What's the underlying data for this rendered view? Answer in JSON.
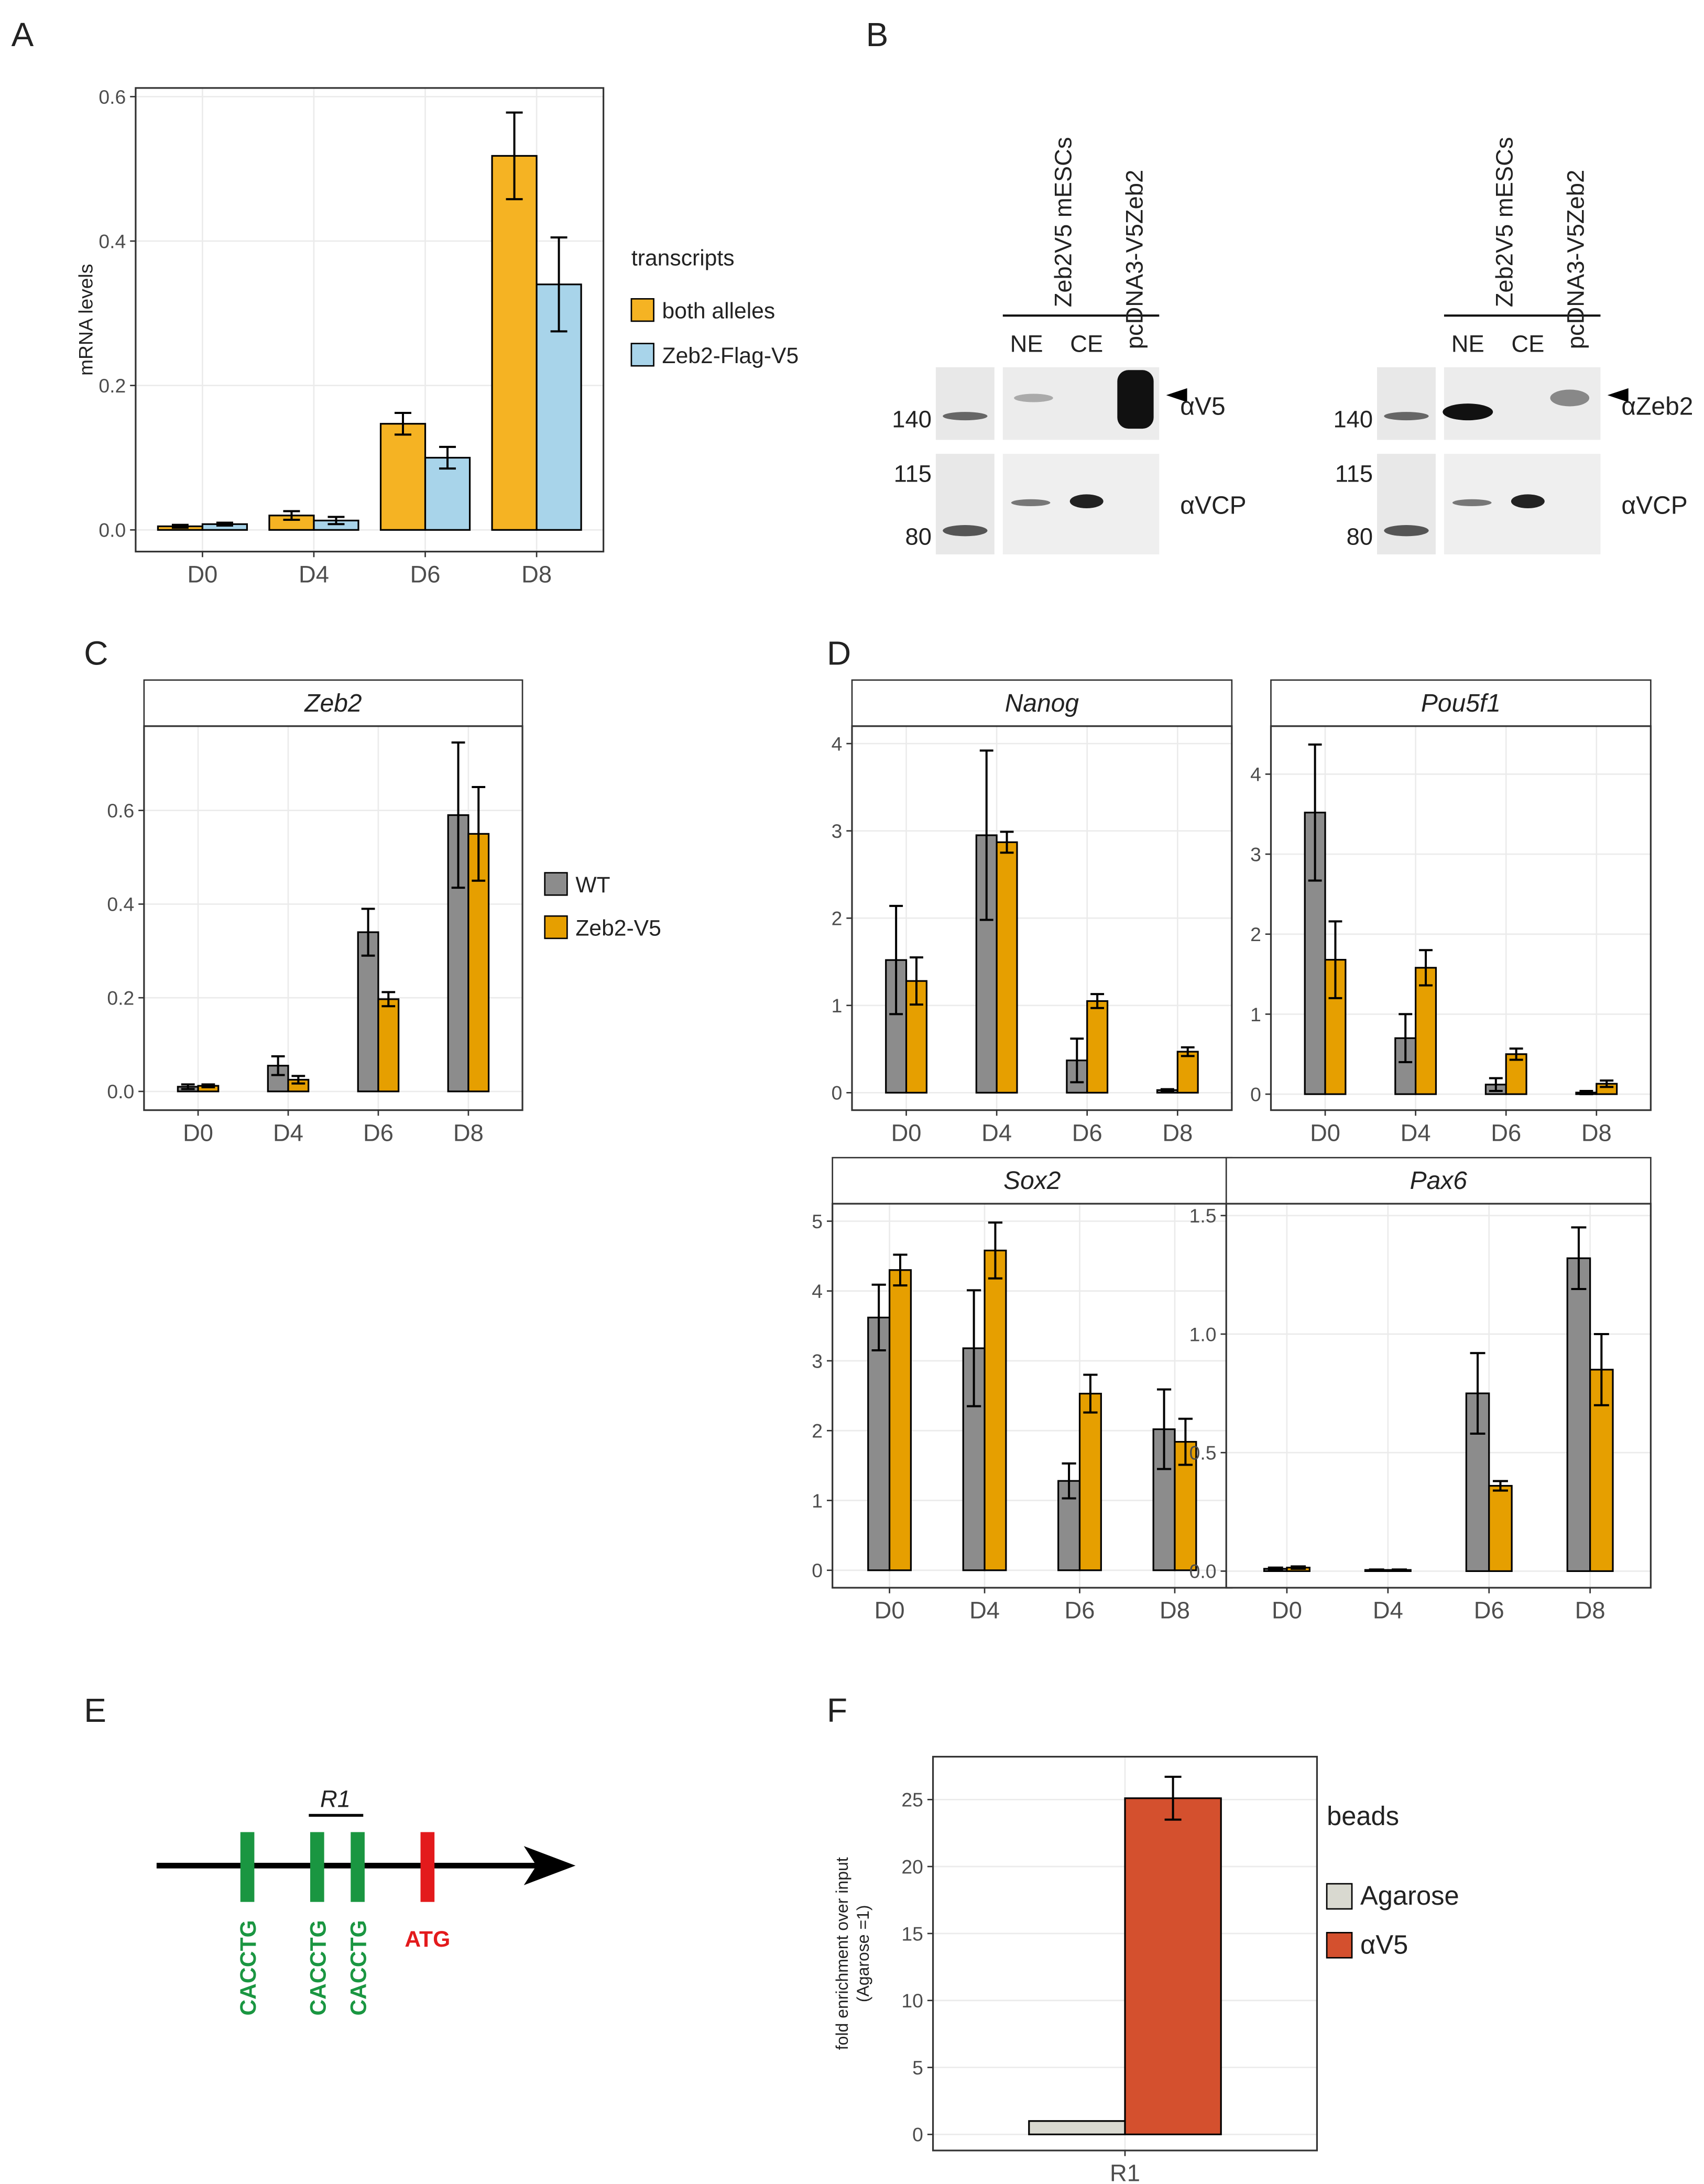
{
  "panels": [
    "A",
    "B",
    "C",
    "D",
    "E",
    "F"
  ],
  "chart_data": [
    {
      "type": "bar",
      "categories": [
        "D0",
        "D4",
        "D6",
        "D8"
      ],
      "ylabel": "mRNA levels",
      "legend_title": "transcripts",
      "series": [
        {
          "name": "both alleles",
          "color": "#f5b323",
          "values": [
            0.005,
            0.02,
            0.147,
            0.518
          ],
          "errors": [
            0.002,
            0.006,
            0.015,
            0.06
          ]
        },
        {
          "name": "Zeb2-Flag-V5",
          "color": "#a8d4ea",
          "values": [
            0.008,
            0.013,
            0.1,
            0.34
          ],
          "errors": [
            0.002,
            0.005,
            0.015,
            0.065
          ]
        }
      ],
      "ylim": [
        -0.03,
        0.612
      ],
      "yticks": [
        {
          "value": 0,
          "label": "0.0"
        },
        {
          "value": 0.2,
          "label": "0.2"
        },
        {
          "value": 0.4,
          "label": "0.4"
        },
        {
          "value": 0.6,
          "label": "0.6"
        }
      ],
      "grid": true
    },
    {
      "type": "bar",
      "title": "Zeb2",
      "categories": [
        "D0",
        "D4",
        "D6",
        "D8"
      ],
      "series": [
        {
          "name": "WT",
          "color": "#8c8c8c",
          "values": [
            0.01,
            0.055,
            0.34,
            0.59
          ],
          "errors": [
            0.005,
            0.02,
            0.05,
            0.155
          ]
        },
        {
          "name": "Zeb2-V5",
          "color": "#e69f00",
          "values": [
            0.012,
            0.025,
            0.197,
            0.55
          ],
          "errors": [
            0.003,
            0.008,
            0.015,
            0.1
          ]
        }
      ],
      "ylim": [
        -0.04,
        0.78
      ],
      "yticks": [
        {
          "value": 0,
          "label": "0.0"
        },
        {
          "value": 0.2,
          "label": "0.2"
        },
        {
          "value": 0.4,
          "label": "0.4"
        },
        {
          "value": 0.6,
          "label": "0.6"
        }
      ],
      "grid": true
    },
    {
      "type": "bar",
      "title": "Nanog",
      "categories": [
        "D0",
        "D4",
        "D6",
        "D8"
      ],
      "series": [
        {
          "color": "#8c8c8c",
          "values": [
            1.52,
            2.95,
            0.37,
            0.03
          ],
          "errors": [
            0.62,
            0.97,
            0.25,
            0.01
          ]
        },
        {
          "color": "#e69f00",
          "values": [
            1.28,
            2.87,
            1.05,
            0.47
          ],
          "errors": [
            0.27,
            0.12,
            0.08,
            0.05
          ]
        }
      ],
      "ylim": [
        -0.2,
        4.2
      ],
      "yticks": [
        0,
        1,
        2,
        3,
        4
      ],
      "grid": true
    },
    {
      "type": "bar",
      "title": "Pou5f1",
      "categories": [
        "D0",
        "D4",
        "D6",
        "D8"
      ],
      "series": [
        {
          "color": "#8c8c8c",
          "values": [
            3.52,
            0.7,
            0.12,
            0.02
          ],
          "errors": [
            0.85,
            0.3,
            0.08,
            0.02
          ]
        },
        {
          "color": "#e69f00",
          "values": [
            1.68,
            1.58,
            0.5,
            0.13
          ],
          "errors": [
            0.48,
            0.22,
            0.07,
            0.04
          ]
        }
      ],
      "ylim": [
        -0.2,
        4.6
      ],
      "yticks": [
        0,
        1,
        2,
        3,
        4
      ],
      "grid": true
    },
    {
      "type": "bar",
      "title": "Sox2",
      "categories": [
        "D0",
        "D4",
        "D6",
        "D8"
      ],
      "series": [
        {
          "color": "#8c8c8c",
          "values": [
            3.62,
            3.18,
            1.28,
            2.02
          ],
          "errors": [
            0.47,
            0.83,
            0.25,
            0.57
          ]
        },
        {
          "color": "#e69f00",
          "values": [
            4.3,
            4.58,
            2.53,
            1.84
          ],
          "errors": [
            0.22,
            0.4,
            0.27,
            0.33
          ]
        }
      ],
      "ylim": [
        -0.25,
        5.25
      ],
      "yticks": [
        0,
        1,
        2,
        3,
        4,
        5
      ],
      "grid": true
    },
    {
      "type": "bar",
      "title": "Pax6",
      "categories": [
        "D0",
        "D4",
        "D6",
        "D8"
      ],
      "series": [
        {
          "color": "#8c8c8c",
          "values": [
            0.01,
            0.005,
            0.75,
            1.32
          ],
          "errors": [
            0.005,
            0.002,
            0.17,
            0.13
          ]
        },
        {
          "color": "#e69f00",
          "values": [
            0.015,
            0.005,
            0.36,
            0.85
          ],
          "errors": [
            0.005,
            0.002,
            0.02,
            0.15
          ]
        }
      ],
      "ylim": [
        -0.07,
        1.55
      ],
      "yticks": [
        {
          "value": 0,
          "label": "0.0"
        },
        {
          "value": 0.5,
          "label": "0.5"
        },
        {
          "value": 1,
          "label": "1.0"
        },
        {
          "value": 1.5,
          "label": "1.5"
        }
      ],
      "grid": true
    },
    {
      "type": "bar",
      "categories": [
        "R1"
      ],
      "ylabel": [
        "fold enrichment over input",
        "(Agarose =1)"
      ],
      "legend_title": "beads",
      "series": [
        {
          "name": "Agarose",
          "color": "#d9d9d0",
          "values": [
            1
          ]
        },
        {
          "name": "αV5",
          "color": "#d4502e",
          "values": [
            25.1
          ],
          "errors": [
            1.6
          ]
        }
      ],
      "ylim": [
        -1.2,
        28.2
      ],
      "yticks": [
        0,
        5,
        10,
        15,
        20,
        25
      ],
      "grid": true
    }
  ],
  "blot": [
    {
      "group": "Zeb2V5 mESCs",
      "lanes": [
        "NE",
        "CE",
        "pcDNA3-V5Zeb2"
      ],
      "markers": [
        "140",
        "115",
        "80"
      ],
      "antibodies": [
        "αV5",
        "αVCP"
      ]
    },
    {
      "group": "Zeb2V5 mESCs",
      "lanes": [
        "NE",
        "CE",
        "pcDNA3-V5Zeb2"
      ],
      "markers": [
        "140",
        "115",
        "80"
      ],
      "antibodies": [
        "αZeb2",
        "αVCP"
      ]
    }
  ],
  "diagram": {
    "region": "R1",
    "motifs": [
      "CACCTG",
      "CACCTG",
      "CACCTG"
    ],
    "start": "ATG"
  }
}
